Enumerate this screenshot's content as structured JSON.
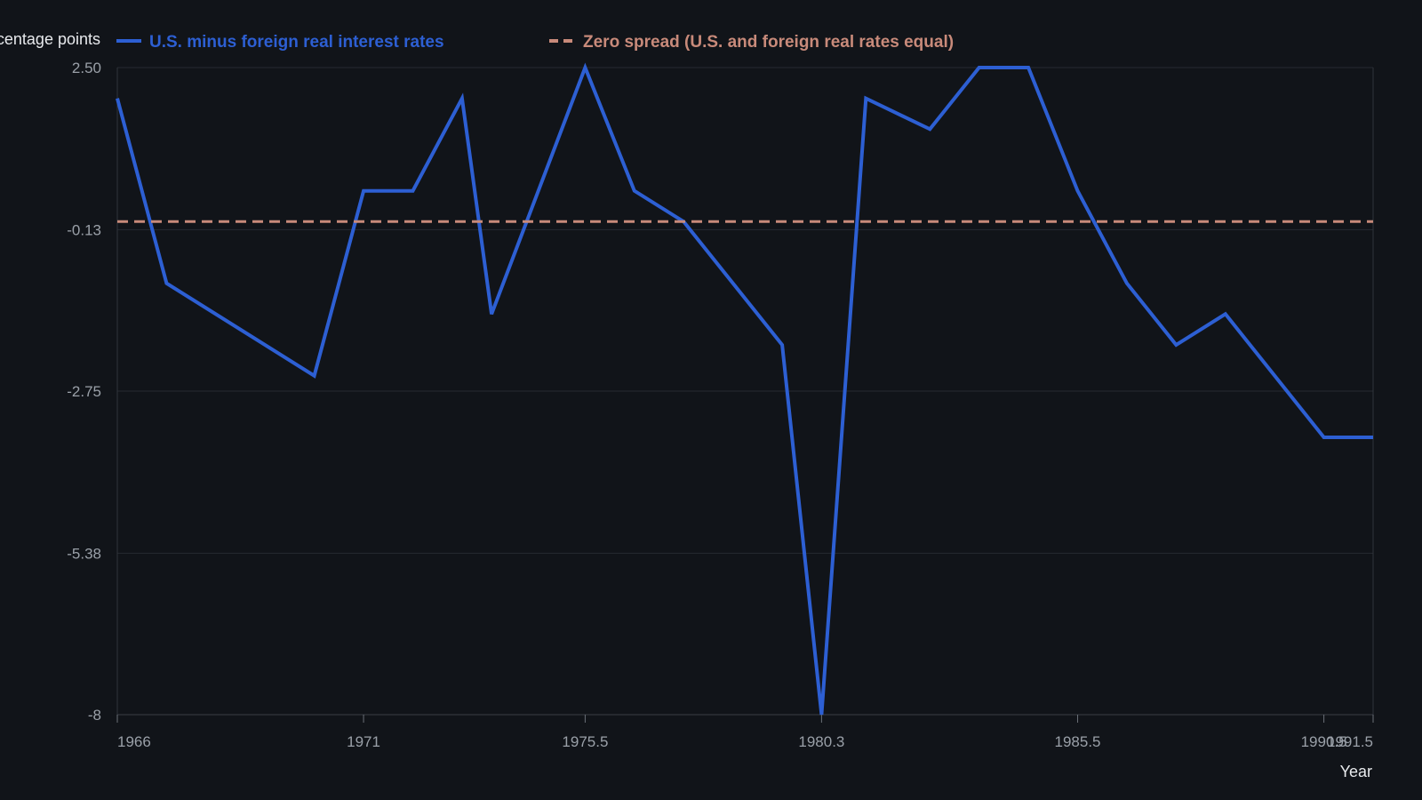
{
  "chart_data": {
    "type": "line",
    "title": "",
    "xlabel": "Year",
    "ylabel": "Percentage points",
    "xlim": [
      1966,
      1991.5
    ],
    "ylim": [
      -8,
      2.5
    ],
    "x_ticks": [
      1966,
      1971,
      1975.5,
      1980.3,
      1985.5,
      1990.5,
      1991.5
    ],
    "x_tick_labels": [
      "1966",
      "1971",
      "1975.5",
      "1980.3",
      "1985.5",
      "1990.5",
      "1991.5"
    ],
    "y_ticks": [
      2.5,
      -0.13,
      -2.75,
      -5.38,
      -8
    ],
    "y_tick_labels": [
      "2.50",
      "-0.13",
      "-2.75",
      "-5.38",
      "-8"
    ],
    "grid": true,
    "legend_position": "top",
    "series": [
      {
        "name": "U.S. minus foreign real interest rates",
        "color": "#2d5fd3",
        "style": "solid",
        "x": [
          1966,
          1967,
          1970,
          1971,
          1972,
          1973,
          1973.6,
          1975.5,
          1976.5,
          1977.5,
          1979.5,
          1980.3,
          1981.2,
          1982.5,
          1983.5,
          1984.5,
          1985.5,
          1986.5,
          1987.5,
          1988.5,
          1990.5,
          1991.5
        ],
        "values": [
          2.0,
          -1.0,
          -2.5,
          0.5,
          0.5,
          2.0,
          -1.5,
          2.5,
          0.5,
          0.0,
          -2.0,
          -8.0,
          2.0,
          1.5,
          2.5,
          2.5,
          0.5,
          -1.0,
          -2.0,
          -1.5,
          -3.5,
          -3.5
        ]
      },
      {
        "name": "Zero spread (U.S. and foreign real rates equal)",
        "color": "#c88a7a",
        "style": "dashed",
        "x": [
          1966,
          1991.5
        ],
        "values": [
          0,
          0
        ]
      }
    ]
  }
}
